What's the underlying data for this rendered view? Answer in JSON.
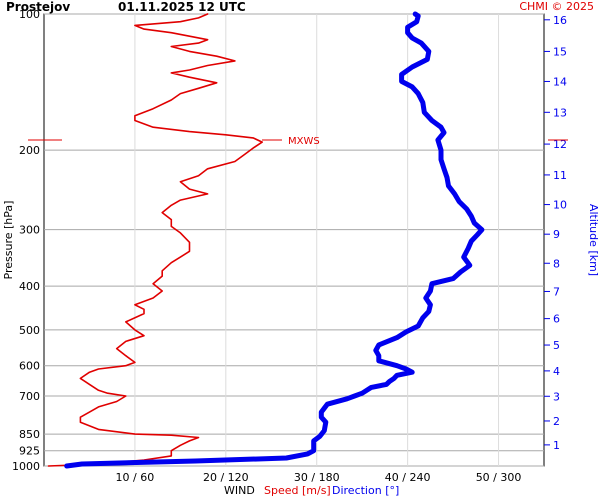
{
  "header": {
    "station": "Prostejov",
    "datetime": "01.11.2025 12 UTC",
    "credit": "CHMI © 2025"
  },
  "chart_data": {
    "type": "line",
    "title": "Prostejov 01.11.2025 12 UTC",
    "left_axis": {
      "label": "Pressure [hPa]",
      "scale": "log",
      "range": [
        1000,
        100
      ],
      "ticks": [
        100,
        200,
        300,
        400,
        500,
        600,
        700,
        850,
        925,
        1000
      ]
    },
    "right_axis": {
      "label": "Altitude [km]",
      "color": "#0000ee",
      "ticks": [
        1,
        2,
        3,
        4,
        5,
        6,
        7,
        8,
        9,
        10,
        11,
        12,
        13,
        14,
        15,
        16
      ],
      "tick_pressure": [
        898,
        795,
        701,
        616,
        540,
        472,
        411,
        356,
        307,
        264,
        227,
        194,
        165,
        141,
        121,
        103
      ]
    },
    "x_axis": {
      "label_parts": [
        {
          "text": "WIND",
          "color": "#000000"
        },
        {
          "text": "Speed [m/s]",
          "color": "#e00000"
        },
        {
          "text": "Direction [°]",
          "color": "#0000ee"
        }
      ],
      "ticks": [
        "10 / 60",
        "20 / 120",
        "30 / 180",
        "40 / 240",
        "50 / 300"
      ],
      "speed_range": [
        0,
        55
      ],
      "direction_range": [
        0,
        330
      ]
    },
    "annotations": [
      {
        "text": "MXWS",
        "pressure": 190,
        "color": "#e00000"
      }
    ],
    "series": [
      {
        "kind": "speed",
        "color": "#e00000",
        "x_unit": "m/s",
        "points": [
          [
            1000,
            0.5
          ],
          [
            990,
            6
          ],
          [
            970,
            11
          ],
          [
            950,
            14
          ],
          [
            925,
            14
          ],
          [
            900,
            15
          ],
          [
            880,
            16
          ],
          [
            865,
            17
          ],
          [
            855,
            14
          ],
          [
            850,
            10
          ],
          [
            830,
            6
          ],
          [
            800,
            4
          ],
          [
            780,
            4
          ],
          [
            760,
            5
          ],
          [
            740,
            6
          ],
          [
            720,
            8
          ],
          [
            700,
            9
          ],
          [
            690,
            7
          ],
          [
            680,
            6
          ],
          [
            660,
            5
          ],
          [
            640,
            4
          ],
          [
            620,
            5
          ],
          [
            610,
            6
          ],
          [
            600,
            9
          ],
          [
            590,
            10
          ],
          [
            570,
            9
          ],
          [
            550,
            8
          ],
          [
            530,
            9
          ],
          [
            515,
            11
          ],
          [
            500,
            10
          ],
          [
            480,
            9
          ],
          [
            460,
            11
          ],
          [
            450,
            11
          ],
          [
            440,
            10
          ],
          [
            425,
            12
          ],
          [
            410,
            13
          ],
          [
            395,
            12
          ],
          [
            380,
            13
          ],
          [
            370,
            13
          ],
          [
            355,
            14
          ],
          [
            345,
            15
          ],
          [
            335,
            16
          ],
          [
            320,
            16
          ],
          [
            305,
            15
          ],
          [
            295,
            14
          ],
          [
            285,
            14
          ],
          [
            275,
            13
          ],
          [
            265,
            14
          ],
          [
            258,
            15
          ],
          [
            250,
            18
          ],
          [
            244,
            16
          ],
          [
            235,
            15
          ],
          [
            228,
            17
          ],
          [
            220,
            18
          ],
          [
            212,
            21
          ],
          [
            205,
            22
          ],
          [
            198,
            23
          ],
          [
            192,
            24
          ],
          [
            188,
            23
          ],
          [
            185,
            20
          ],
          [
            182,
            16
          ],
          [
            178,
            12
          ],
          [
            172,
            10
          ],
          [
            168,
            10
          ],
          [
            162,
            12
          ],
          [
            155,
            14
          ],
          [
            150,
            15
          ],
          [
            146,
            17
          ],
          [
            142,
            19
          ],
          [
            138,
            16
          ],
          [
            135,
            14
          ],
          [
            133,
            16
          ],
          [
            130,
            18
          ],
          [
            127,
            21
          ],
          [
            124,
            19
          ],
          [
            121,
            16
          ],
          [
            118,
            14
          ],
          [
            116,
            17
          ],
          [
            114,
            18
          ],
          [
            112,
            16
          ],
          [
            110,
            14
          ],
          [
            108,
            11
          ],
          [
            106,
            10
          ],
          [
            104,
            15
          ],
          [
            102,
            17
          ],
          [
            100,
            18
          ]
        ]
      },
      {
        "kind": "direction",
        "color": "#0000ee",
        "x_unit": "°",
        "points": [
          [
            1000,
            15
          ],
          [
            990,
            25
          ],
          [
            975,
            100
          ],
          [
            960,
            160
          ],
          [
            940,
            174
          ],
          [
            925,
            178
          ],
          [
            900,
            178
          ],
          [
            880,
            178
          ],
          [
            860,
            182
          ],
          [
            835,
            185
          ],
          [
            800,
            186
          ],
          [
            780,
            183
          ],
          [
            760,
            183
          ],
          [
            745,
            185
          ],
          [
            730,
            187
          ],
          [
            710,
            200
          ],
          [
            700,
            205
          ],
          [
            690,
            210
          ],
          [
            680,
            213
          ],
          [
            670,
            216
          ],
          [
            660,
            226
          ],
          [
            650,
            228
          ],
          [
            640,
            231
          ],
          [
            630,
            233
          ],
          [
            620,
            243
          ],
          [
            610,
            239
          ],
          [
            600,
            233
          ],
          [
            585,
            221
          ],
          [
            570,
            221
          ],
          [
            555,
            219
          ],
          [
            540,
            221
          ],
          [
            520,
            233
          ],
          [
            505,
            239
          ],
          [
            490,
            247
          ],
          [
            470,
            250
          ],
          [
            455,
            254
          ],
          [
            440,
            255
          ],
          [
            425,
            252
          ],
          [
            410,
            255
          ],
          [
            395,
            256
          ],
          [
            385,
            270
          ],
          [
            372,
            275
          ],
          [
            360,
            281
          ],
          [
            345,
            277
          ],
          [
            330,
            280
          ],
          [
            318,
            282
          ],
          [
            308,
            286
          ],
          [
            300,
            289
          ],
          [
            290,
            284
          ],
          [
            280,
            282
          ],
          [
            270,
            279
          ],
          [
            260,
            274
          ],
          [
            250,
            271
          ],
          [
            240,
            267
          ],
          [
            230,
            266
          ],
          [
            220,
            264
          ],
          [
            210,
            262
          ],
          [
            200,
            262
          ],
          [
            190,
            260
          ],
          [
            183,
            264
          ],
          [
            178,
            262
          ],
          [
            172,
            256
          ],
          [
            165,
            251
          ],
          [
            157,
            250
          ],
          [
            150,
            247
          ],
          [
            145,
            243
          ],
          [
            141,
            236
          ],
          [
            136,
            236
          ],
          [
            131,
            243
          ],
          [
            126,
            253
          ],
          [
            121,
            254
          ],
          [
            116,
            249
          ],
          [
            113,
            243
          ],
          [
            110,
            240
          ],
          [
            107,
            240
          ],
          [
            104,
            246
          ],
          [
            101,
            247
          ],
          [
            100,
            245
          ]
        ]
      }
    ]
  }
}
